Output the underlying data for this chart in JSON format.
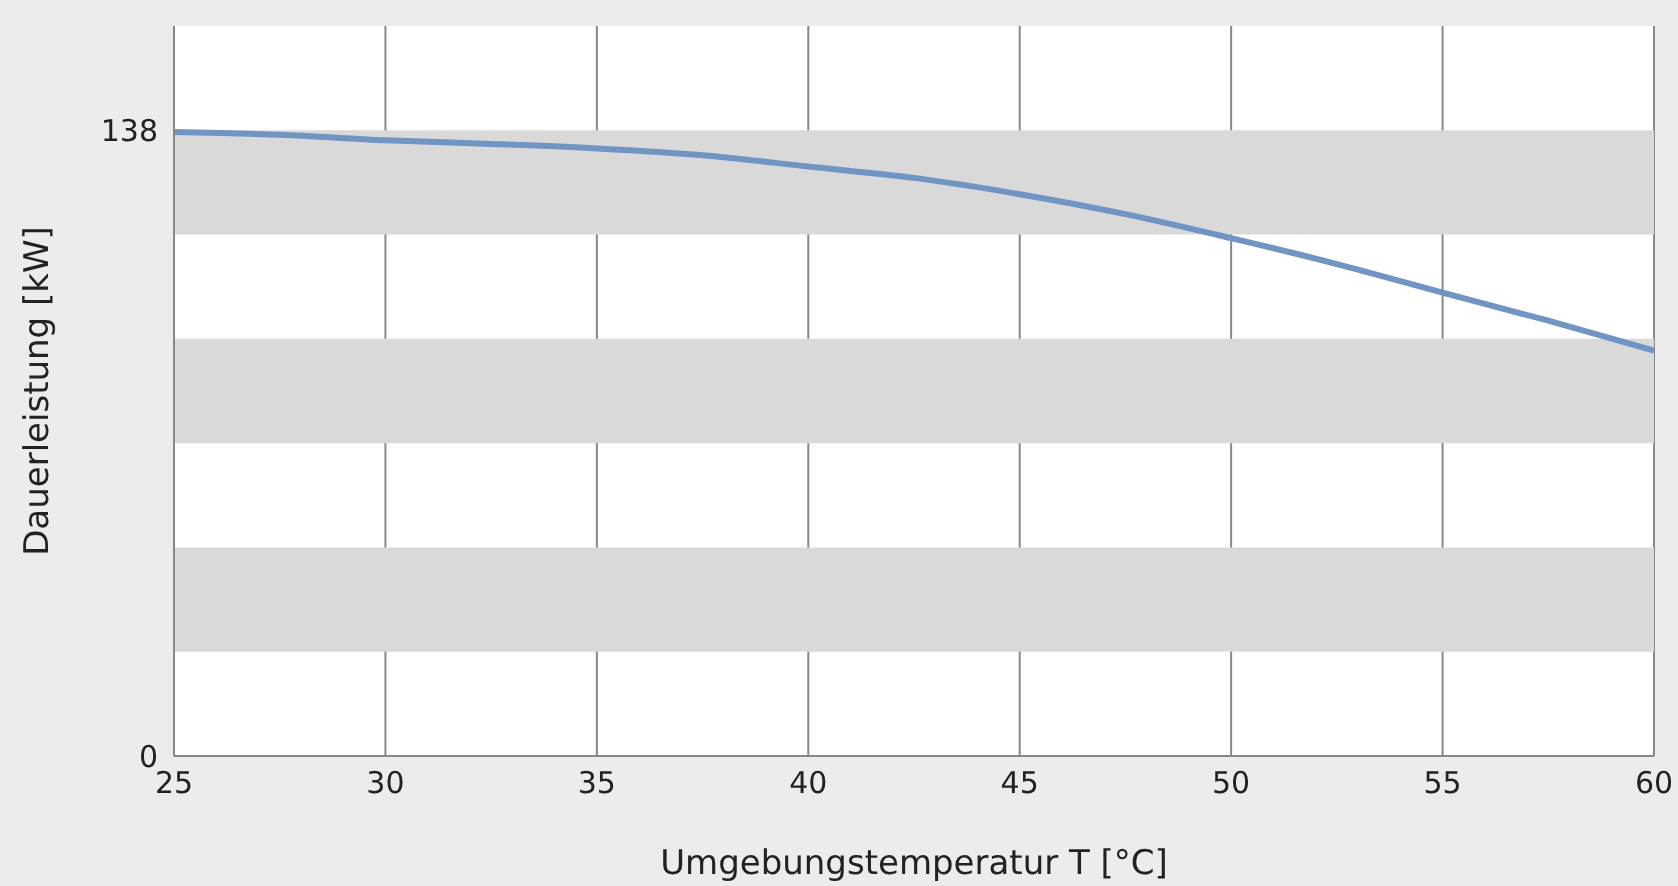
{
  "chart_data": {
    "type": "line",
    "xlabel": "Umgebungstemperatur T [°C]",
    "ylabel": "Dauerleistung  [kW]",
    "x": [
      25,
      27.5,
      30,
      32.5,
      35,
      37.5,
      40,
      42.5,
      45,
      47.5,
      50,
      52.5,
      55,
      57.5,
      60
    ],
    "series": [
      {
        "color": "#7094c4",
        "values": [
          137.6,
          137,
          135.8,
          135,
          134,
          132.5,
          130,
          127.5,
          123.9,
          119.5,
          114.2,
          108.5,
          102.2,
          96,
          89.4
        ]
      }
    ],
    "xlim": [
      25,
      60
    ],
    "xticks": [
      25,
      30,
      35,
      40,
      45,
      50,
      55,
      60
    ],
    "ylim": [
      0,
      161
    ],
    "yticks": [
      0,
      138
    ],
    "bands": [
      {
        "axis": "y",
        "from": 23,
        "to": 46,
        "color": "#d9d9d9"
      },
      {
        "axis": "y",
        "from": 69,
        "to": 92,
        "color": "#d9d9d9"
      },
      {
        "axis": "y",
        "from": 115,
        "to": 138,
        "color": "#d9d9d9"
      }
    ],
    "grid": "x",
    "marker": "none",
    "line_style": "solid",
    "legend": false
  }
}
